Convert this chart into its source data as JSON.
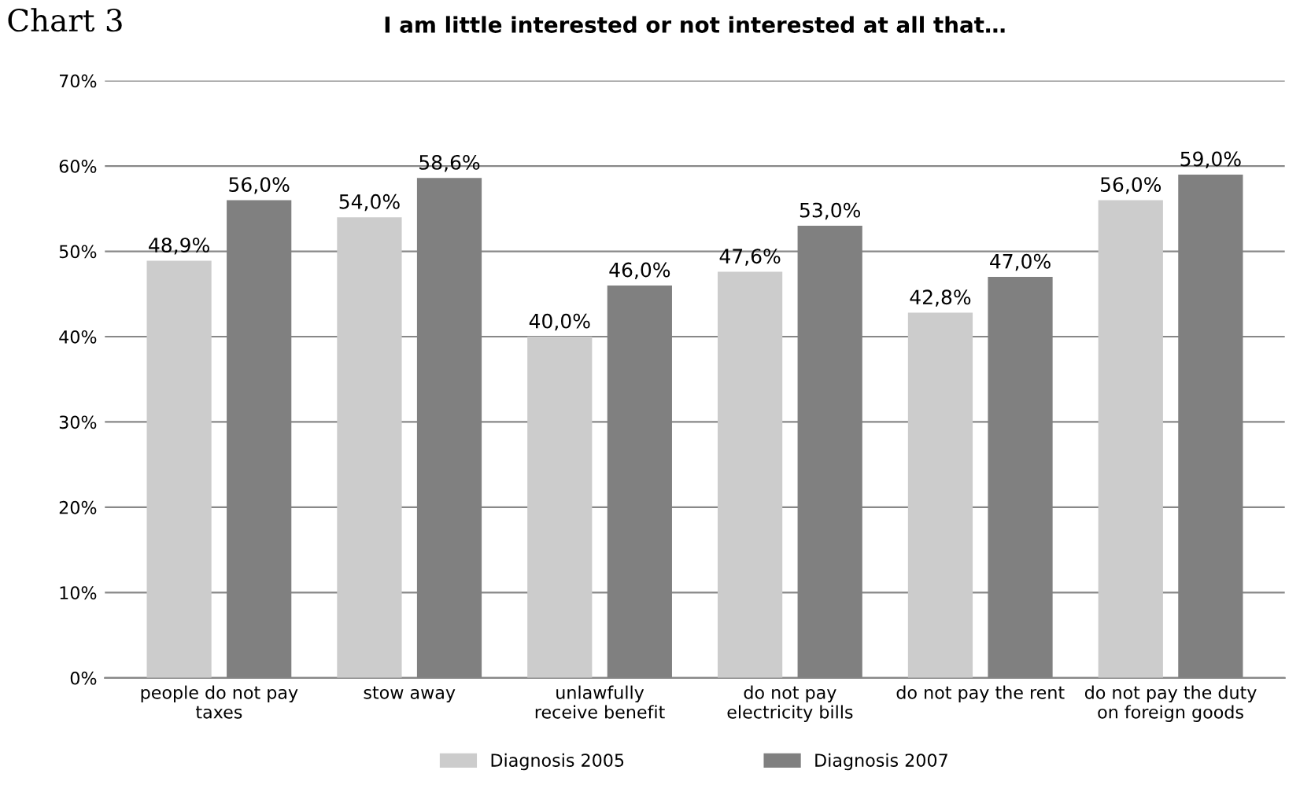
{
  "chart_data": {
    "type": "bar",
    "title": "I am little interested or not interested at all that…",
    "annotations": [
      "Chart 3"
    ],
    "categories": [
      "people do not pay\ntaxes",
      "stow away",
      "unlawfully\nreceive benefit",
      "do not pay\nelectricity bills",
      "do not pay the rent",
      "do not pay the duty\non foreign goods"
    ],
    "series": [
      {
        "name": "Diagnosis 2005",
        "color": "#cccccc",
        "values": [
          48.9,
          54.0,
          40.0,
          47.6,
          42.8,
          56.0
        ],
        "value_labels": [
          "48,9%",
          "54,0%",
          "40,0%",
          "47,6%",
          "42,8%",
          "56,0%"
        ]
      },
      {
        "name": "Diagnosis 2007",
        "color": "#808080",
        "values": [
          56.0,
          58.6,
          46.0,
          53.0,
          47.0,
          59.0
        ],
        "value_labels": [
          "56,0%",
          "58,6%",
          "46,0%",
          "53,0%",
          "47,0%",
          "59,0%"
        ]
      }
    ],
    "ylim": [
      0,
      70
    ],
    "yticks": [
      {
        "value": 0,
        "label": "0%"
      },
      {
        "value": 10,
        "label": "10%"
      },
      {
        "value": 20,
        "label": "20%"
      },
      {
        "value": 30,
        "label": "30%"
      },
      {
        "value": 40,
        "label": "40%"
      },
      {
        "value": 50,
        "label": "50%"
      },
      {
        "value": 60,
        "label": "60%"
      },
      {
        "value": 70,
        "label": "70%"
      }
    ],
    "grid": "y",
    "legend": "bottom"
  }
}
